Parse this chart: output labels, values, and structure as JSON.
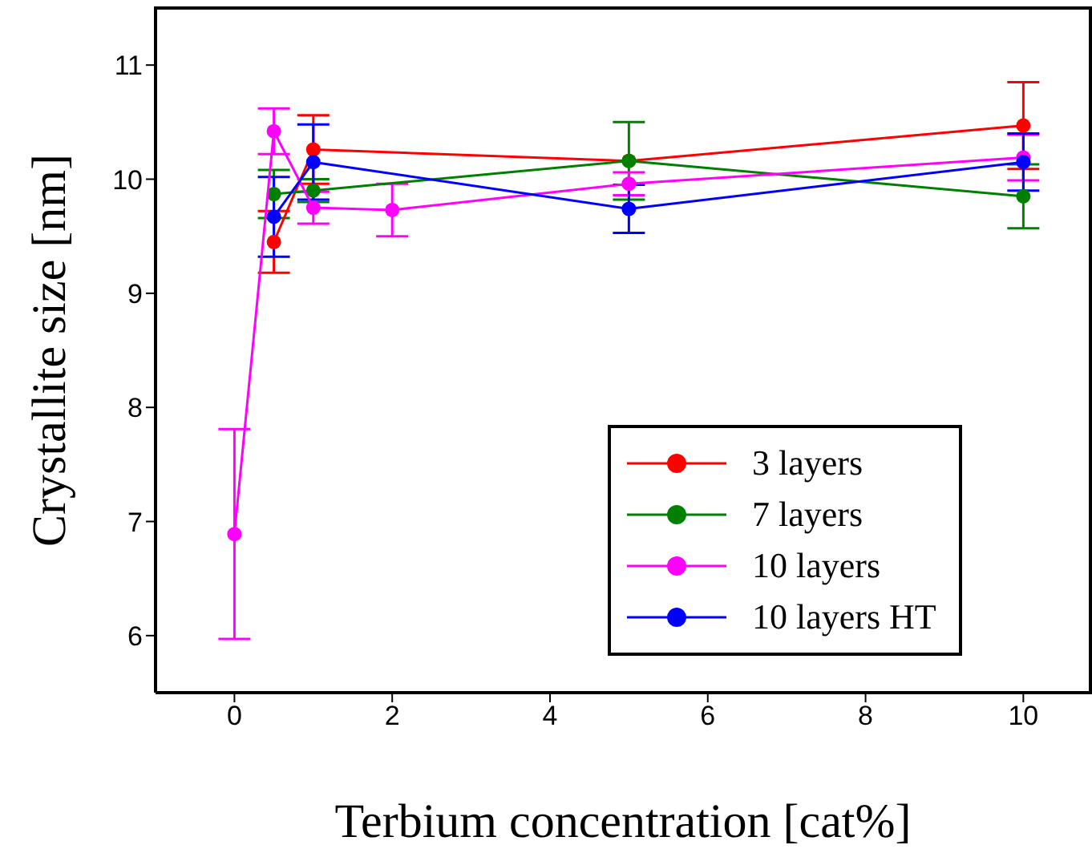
{
  "chart_data": {
    "type": "line",
    "xlabel": "Terbium concentration [cat%]",
    "ylabel": "Crystallite size [nm]",
    "xlim": [
      -1,
      10.85
    ],
    "xticks": [
      0,
      2,
      4,
      6,
      8,
      10
    ],
    "ylim": [
      5.5,
      11.5
    ],
    "yticks": [
      6,
      7,
      8,
      9,
      10,
      11
    ],
    "grid": false,
    "legend": "bottom right",
    "marker": "circle",
    "line_style": "solid",
    "series": [
      {
        "name": "3 layers",
        "color": "#ff0000",
        "x": [
          0.5,
          1,
          5,
          10
        ],
        "values": [
          9.45,
          10.26,
          10.16,
          10.47
        ],
        "errors": [
          0.27,
          0.3,
          null,
          0.38
        ]
      },
      {
        "name": "7 layers",
        "color": "#008000",
        "x": [
          0.5,
          1,
          5,
          10
        ],
        "values": [
          9.87,
          9.9,
          10.16,
          9.85
        ],
        "errors": [
          0.21,
          0.1,
          0.34,
          0.28
        ]
      },
      {
        "name": "10 layers",
        "color": "#ff00ff",
        "x": [
          0,
          0.5,
          1,
          2,
          5,
          10
        ],
        "values": [
          6.89,
          10.42,
          9.75,
          9.73,
          9.96,
          10.19
        ],
        "errors": [
          0.92,
          0.2,
          0.14,
          0.23,
          0.1,
          0.2
        ]
      },
      {
        "name": "10 layers HT",
        "color": "#0000ff",
        "x": [
          0.5,
          1,
          5,
          10
        ],
        "values": [
          9.67,
          10.15,
          9.74,
          10.15
        ],
        "errors": [
          0.35,
          0.33,
          0.21,
          0.25
        ]
      }
    ]
  }
}
